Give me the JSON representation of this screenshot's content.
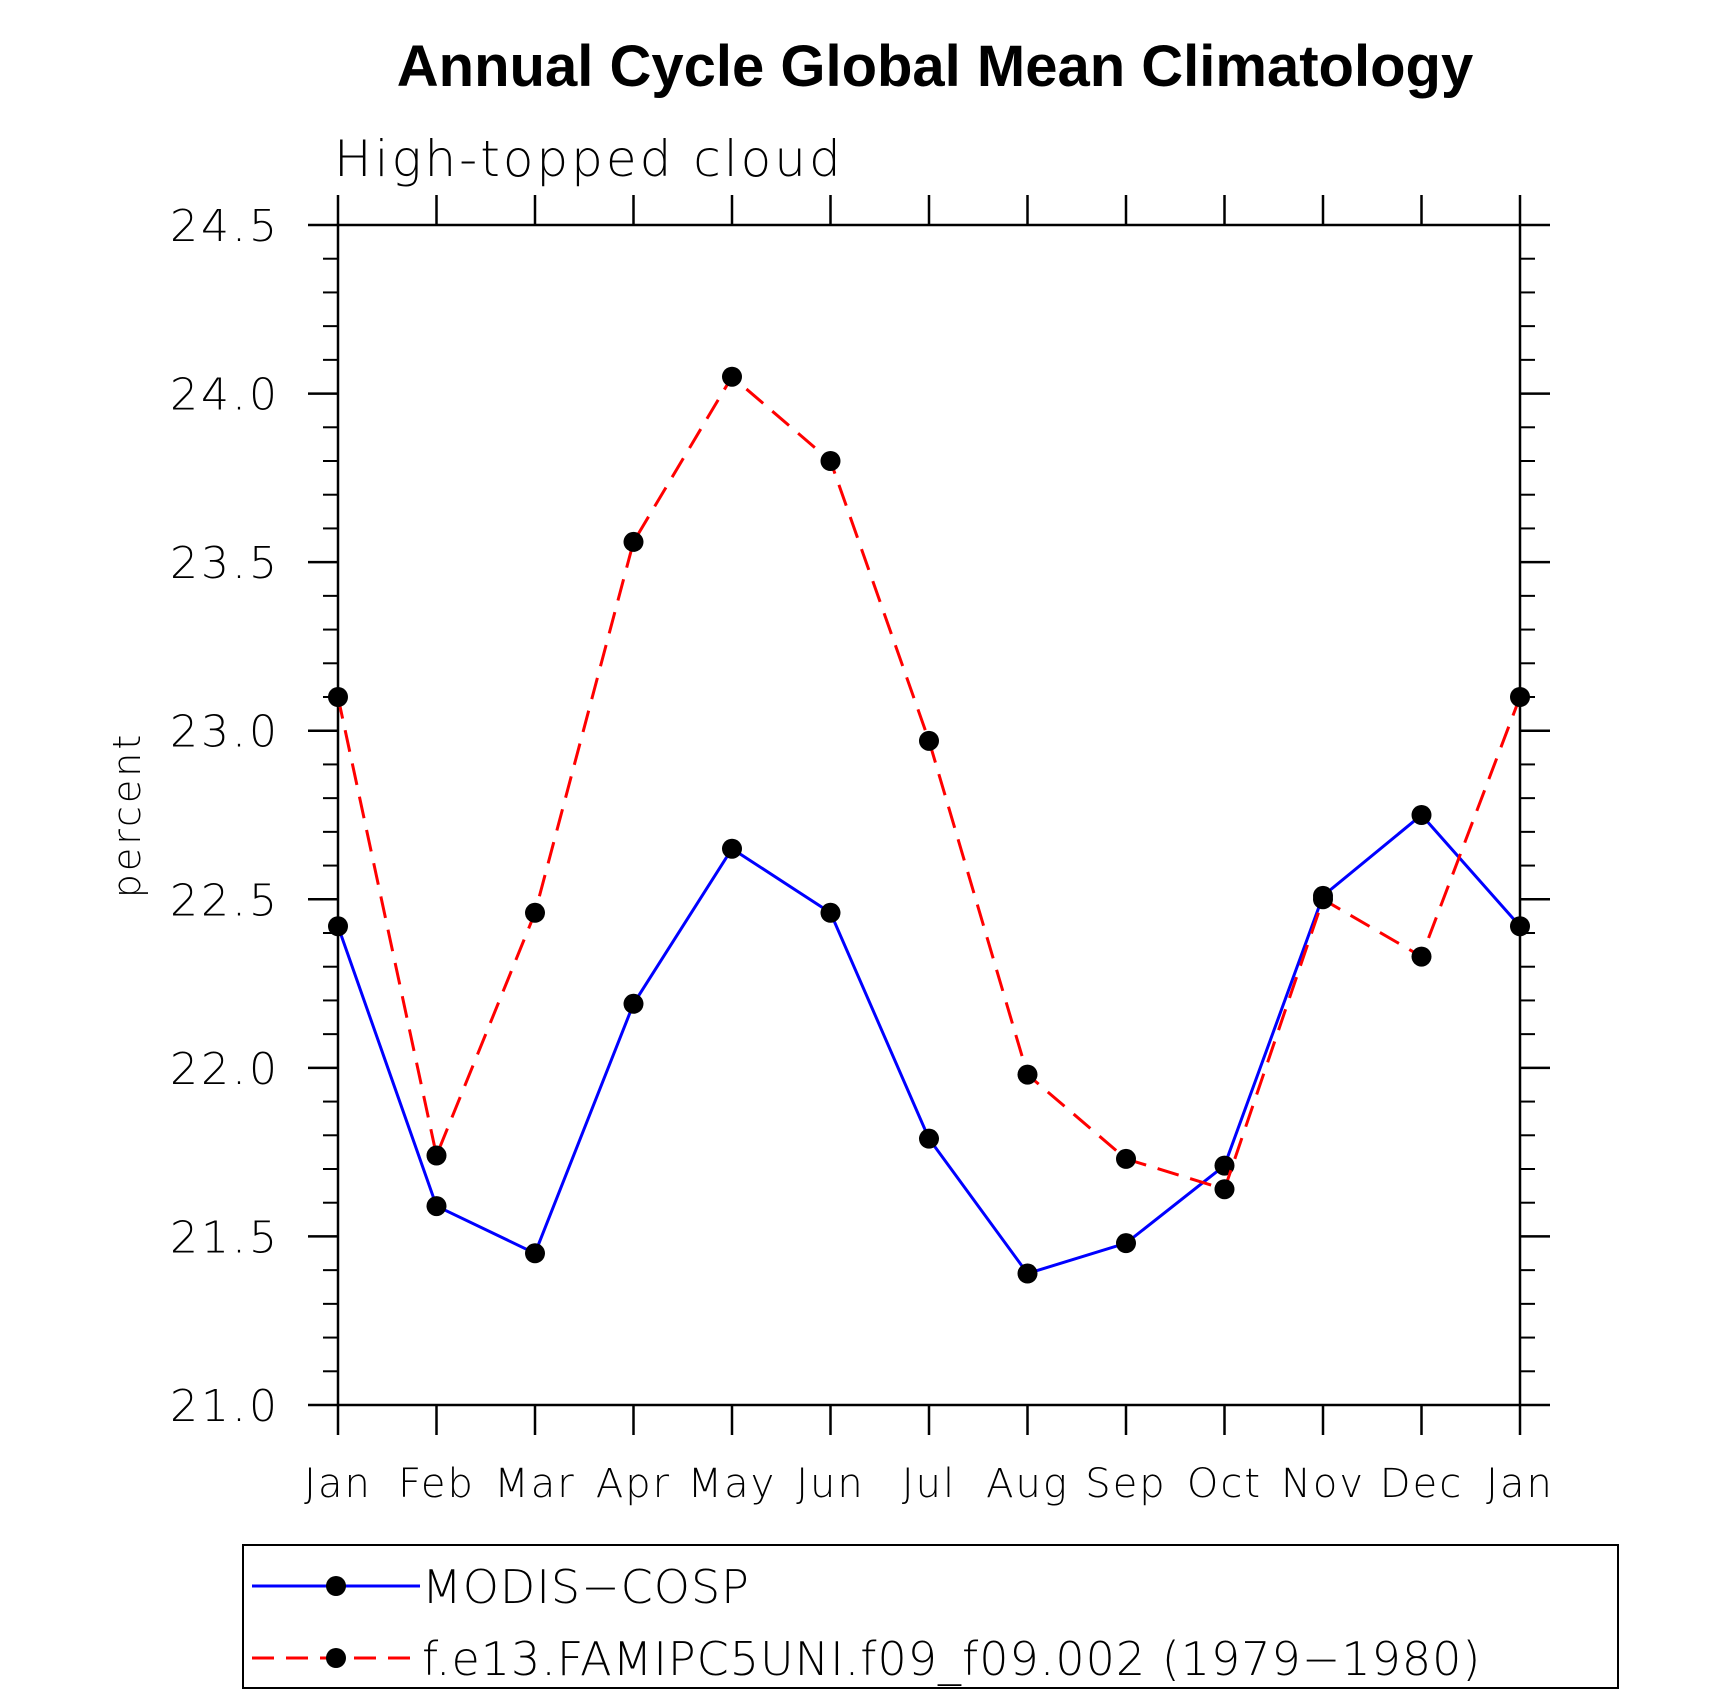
{
  "chart_data": {
    "type": "line",
    "title": "Annual Cycle Global Mean Climatology",
    "subtitle": "High-topped cloud",
    "xlabel": "",
    "ylabel": "percent",
    "categories": [
      "Jan",
      "Feb",
      "Mar",
      "Apr",
      "May",
      "Jun",
      "Jul",
      "Aug",
      "Sep",
      "Oct",
      "Nov",
      "Dec",
      "Jan"
    ],
    "ylim": [
      21.0,
      24.5
    ],
    "yticks": [
      "21.0",
      "21.5",
      "22.0",
      "22.5",
      "23.0",
      "23.5",
      "24.0",
      "24.5"
    ],
    "ytick_values": [
      21.0,
      21.5,
      22.0,
      22.5,
      23.0,
      23.5,
      24.0,
      24.5
    ],
    "y_minor_step": 0.1,
    "grid": false,
    "legend_position": "bottom",
    "series": [
      {
        "name": "MODIS−COSP",
        "color": "#0000ff",
        "dash": "solid",
        "marker": "circle",
        "values": [
          22.42,
          21.59,
          21.45,
          22.19,
          22.65,
          22.46,
          21.79,
          21.39,
          21.48,
          21.71,
          22.51,
          22.75,
          22.42
        ]
      },
      {
        "name": "f.e13.FAMIPC5UNI.f09_f09.002 (1979−1980)",
        "color": "#ff0000",
        "dash": "dashed",
        "marker": "circle",
        "values": [
          23.1,
          21.74,
          22.46,
          23.56,
          24.05,
          23.8,
          22.97,
          21.98,
          21.73,
          21.64,
          22.5,
          22.33,
          23.1
        ]
      }
    ]
  }
}
